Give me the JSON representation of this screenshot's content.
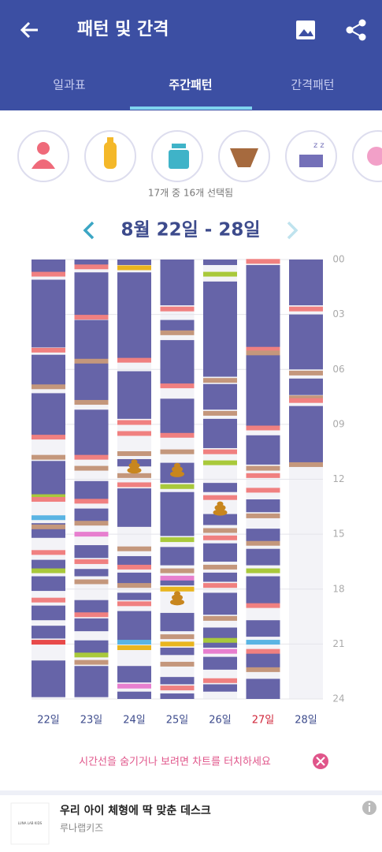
{
  "header": {
    "title": "패턴 및 간격",
    "tabs": [
      "일과표",
      "주간패턴",
      "간격패턴"
    ]
  },
  "selection": "17개 중 16개 선택됨",
  "chart_data": {
    "type": "timeline",
    "title": "8월 22일 - 28일",
    "ylim": [
      0,
      24
    ],
    "yticks": [
      {
        "value": 0,
        "label": "00"
      },
      {
        "value": 3,
        "label": "03"
      },
      {
        "value": 6,
        "label": "06"
      },
      {
        "value": 9,
        "label": "09"
      },
      {
        "value": 12,
        "label": "12"
      },
      {
        "value": 15,
        "label": "15"
      },
      {
        "value": 18,
        "label": "18"
      },
      {
        "value": 21,
        "label": "21"
      },
      {
        "value": 24,
        "label": "24"
      }
    ],
    "sleep_color": "#6664a8",
    "poop_color": "#c8861e",
    "days": [
      {
        "label": "22일",
        "color": "#3d4b8c",
        "sleep": [
          [
            0,
            0.7
          ],
          [
            1.1,
            4.8
          ],
          [
            5.2,
            6.9
          ],
          [
            7.3,
            9.6
          ],
          [
            11,
            12.9
          ],
          [
            14.4,
            15.2
          ],
          [
            16.4,
            16.9
          ],
          [
            17.3,
            18.1
          ],
          [
            18.9,
            19.7
          ],
          [
            20,
            20.7
          ],
          [
            21.9,
            23.9
          ]
        ],
        "events": [
          {
            "t": 0.8,
            "color": "#f08080"
          },
          {
            "t": 4.95,
            "color": "#f08080"
          },
          {
            "t": 6.95,
            "color": "#c4977c"
          },
          {
            "t": 9.7,
            "color": "#f08080"
          },
          {
            "t": 10.8,
            "color": "#c4977c"
          },
          {
            "t": 12.95,
            "color": "#a9c93b"
          },
          {
            "t": 13.1,
            "color": "#f08080"
          },
          {
            "t": 14.1,
            "color": "#5ab4e3"
          },
          {
            "t": 14.6,
            "color": "#c4977c"
          },
          {
            "t": 16.0,
            "color": "#f08080"
          },
          {
            "t": 17.0,
            "color": "#a9c93b"
          },
          {
            "t": 18.6,
            "color": "#f08080"
          },
          {
            "t": 20.9,
            "color": "#e84a4a"
          }
        ],
        "poop": []
      },
      {
        "label": "23일",
        "color": "#3d4b8c",
        "sleep": [
          [
            0,
            0.3
          ],
          [
            0.7,
            3.1
          ],
          [
            3.3,
            5.5
          ],
          [
            5.6,
            7.7
          ],
          [
            8.2,
            10.7
          ],
          [
            12.1,
            13.1
          ],
          [
            13.6,
            14.3
          ],
          [
            15.6,
            16.3
          ],
          [
            16.9,
            17.3
          ],
          [
            18.6,
            19.3
          ],
          [
            19.6,
            20.3
          ],
          [
            20.8,
            21.5
          ],
          [
            22.2,
            23.9
          ]
        ],
        "events": [
          {
            "t": 0.4,
            "color": "#f08080"
          },
          {
            "t": 3.15,
            "color": "#f08080"
          },
          {
            "t": 5.55,
            "color": "#c4977c"
          },
          {
            "t": 7.8,
            "color": "#c4977c"
          },
          {
            "t": 10.8,
            "color": "#f08080"
          },
          {
            "t": 11.4,
            "color": "#c4977c"
          },
          {
            "t": 13.2,
            "color": "#f08080"
          },
          {
            "t": 14.4,
            "color": "#c4977c"
          },
          {
            "t": 15.0,
            "color": "#e77fcf"
          },
          {
            "t": 16.5,
            "color": "#f08080"
          },
          {
            "t": 17.6,
            "color": "#c4977c"
          },
          {
            "t": 19.4,
            "color": "#f08080"
          },
          {
            "t": 21.6,
            "color": "#a9c93b"
          },
          {
            "t": 22.0,
            "color": "#c4977c"
          }
        ],
        "poop": []
      },
      {
        "label": "24일",
        "color": "#3d4b8c",
        "sleep": [
          [
            0,
            0.3
          ],
          [
            0.7,
            5.4
          ],
          [
            6.1,
            8.7
          ],
          [
            10.9,
            11.3
          ],
          [
            12.5,
            14.6
          ],
          [
            16.2,
            16.7
          ],
          [
            17.1,
            17.7
          ],
          [
            18.2,
            18.6
          ],
          [
            19.2,
            20.9
          ],
          [
            22.2,
            23.1
          ],
          [
            23.6,
            24
          ]
        ],
        "events": [
          {
            "t": 0.45,
            "color": "#e9b51f"
          },
          {
            "t": 5.5,
            "color": "#f08080"
          },
          {
            "t": 8.9,
            "color": "#f08080"
          },
          {
            "t": 9.5,
            "color": "#f08080"
          },
          {
            "t": 10.6,
            "color": "#c4977c"
          },
          {
            "t": 11.8,
            "color": "#c4977c"
          },
          {
            "t": 12.3,
            "color": "#f08080"
          },
          {
            "t": 15.8,
            "color": "#c4977c"
          },
          {
            "t": 16.8,
            "color": "#f08080"
          },
          {
            "t": 17.8,
            "color": "#c4977c"
          },
          {
            "t": 18.8,
            "color": "#f08080"
          },
          {
            "t": 20.9,
            "color": "#5ab4e3"
          },
          {
            "t": 21.2,
            "color": "#e9b51f"
          },
          {
            "t": 23.3,
            "color": "#e77fcf"
          }
        ],
        "poop": [
          11.3
        ]
      },
      {
        "label": "25일",
        "color": "#3d4b8c",
        "sleep": [
          [
            0,
            2.5
          ],
          [
            3.3,
            3.9
          ],
          [
            4.4,
            6.8
          ],
          [
            7.6,
            9.5
          ],
          [
            11.1,
            12.2
          ],
          [
            12.7,
            15.1
          ],
          [
            15.7,
            16.7
          ],
          [
            17.3,
            17.8
          ],
          [
            19.3,
            20.3
          ],
          [
            21.2,
            21.6
          ],
          [
            22.8,
            23.2
          ],
          [
            23.7,
            24
          ]
        ],
        "events": [
          {
            "t": 2.7,
            "color": "#f08080"
          },
          {
            "t": 4.0,
            "color": "#c4977c"
          },
          {
            "t": 6.9,
            "color": "#f08080"
          },
          {
            "t": 9.6,
            "color": "#f08080"
          },
          {
            "t": 10.5,
            "color": "#c4977c"
          },
          {
            "t": 12.4,
            "color": "#a9c93b"
          },
          {
            "t": 15.3,
            "color": "#a9c93b"
          },
          {
            "t": 17.0,
            "color": "#c4977c"
          },
          {
            "t": 17.4,
            "color": "#e77fcf"
          },
          {
            "t": 18.0,
            "color": "#e9b51f"
          },
          {
            "t": 20.6,
            "color": "#c4977c"
          },
          {
            "t": 21.0,
            "color": "#e9b51f"
          },
          {
            "t": 22.1,
            "color": "#c4977c"
          },
          {
            "t": 23.4,
            "color": "#f08080"
          }
        ],
        "poop": [
          11.5,
          18.5
        ]
      },
      {
        "label": "26일",
        "color": "#3d4b8c",
        "sleep": [
          [
            0,
            0.3
          ],
          [
            1.2,
            6.4
          ],
          [
            6.8,
            8.2
          ],
          [
            8.7,
            10.3
          ],
          [
            12.2,
            12.7
          ],
          [
            13.9,
            14.5
          ],
          [
            15.5,
            16.5
          ],
          [
            17.1,
            17.6
          ],
          [
            18.2,
            19.4
          ],
          [
            20.1,
            21.2
          ],
          [
            21.7,
            22.4
          ],
          [
            23.2,
            23.6
          ]
        ],
        "events": [
          {
            "t": 0.8,
            "color": "#a9c93b"
          },
          {
            "t": 6.6,
            "color": "#c4977c"
          },
          {
            "t": 8.4,
            "color": "#c4977c"
          },
          {
            "t": 10.5,
            "color": "#f08080"
          },
          {
            "t": 11.1,
            "color": "#a9c93b"
          },
          {
            "t": 13.0,
            "color": "#f08080"
          },
          {
            "t": 14.8,
            "color": "#c4977c"
          },
          {
            "t": 15.2,
            "color": "#f08080"
          },
          {
            "t": 16.8,
            "color": "#c4977c"
          },
          {
            "t": 17.8,
            "color": "#f08080"
          },
          {
            "t": 19.6,
            "color": "#c4977c"
          },
          {
            "t": 20.8,
            "color": "#a9c93b"
          },
          {
            "t": 21.4,
            "color": "#e77fcf"
          },
          {
            "t": 23.0,
            "color": "#f08080"
          }
        ],
        "poop": [
          13.6
        ]
      },
      {
        "label": "27일",
        "color": "#d0263a",
        "sleep": [
          [
            0.3,
            4.8
          ],
          [
            5.2,
            9.1
          ],
          [
            9.6,
            11.2
          ],
          [
            13.1,
            13.8
          ],
          [
            14.7,
            15.4
          ],
          [
            15.8,
            16.7
          ],
          [
            17.3,
            18.8
          ],
          [
            19.7,
            20.6
          ],
          [
            21.5,
            22.3
          ],
          [
            22.9,
            24
          ]
        ],
        "events": [
          {
            "t": 0.1,
            "color": "#f08080"
          },
          {
            "t": 4.9,
            "color": "#f08080"
          },
          {
            "t": 5.1,
            "color": "#c4977c"
          },
          {
            "t": 9.2,
            "color": "#f08080"
          },
          {
            "t": 11.4,
            "color": "#c4977c"
          },
          {
            "t": 11.8,
            "color": "#f08080"
          },
          {
            "t": 12.6,
            "color": "#f08080"
          },
          {
            "t": 14.0,
            "color": "#c4977c"
          },
          {
            "t": 15.5,
            "color": "#c4977c"
          },
          {
            "t": 17.0,
            "color": "#a9c93b"
          },
          {
            "t": 18.9,
            "color": "#f08080"
          },
          {
            "t": 20.9,
            "color": "#5ab4e3"
          },
          {
            "t": 21.4,
            "color": "#f08080"
          },
          {
            "t": 22.4,
            "color": "#c4977c"
          }
        ],
        "poop": []
      },
      {
        "label": "28일",
        "color": "#3d4b8c",
        "sleep": [
          [
            0,
            2.5
          ],
          [
            3.0,
            6.0
          ],
          [
            6.5,
            7.4
          ],
          [
            8.0,
            11.1
          ]
        ],
        "events": [
          {
            "t": 2.7,
            "color": "#f08080"
          },
          {
            "t": 6.2,
            "color": "#c4977c"
          },
          {
            "t": 7.55,
            "color": "#c4977c"
          },
          {
            "t": 7.7,
            "color": "#f08080"
          },
          {
            "t": 11.2,
            "color": "#c4977c"
          }
        ],
        "poop": []
      }
    ]
  },
  "hint": "시간선을 숨기거나 보려면 차트를 터치하세요",
  "ad": {
    "title": "우리 아이 체형에 딱 맞춘 데스크",
    "advertiser": "루나랩키즈",
    "logo": "LUNA LAB KIDS"
  }
}
